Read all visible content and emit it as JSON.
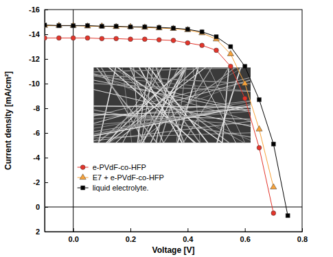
{
  "chart_data": {
    "type": "line",
    "x_label": "Voltage [V]",
    "y_label": "Current density [mA/cm²]",
    "x": [
      -0.1,
      -0.05,
      0,
      0.05,
      0.1,
      0.15,
      0.2,
      0.25,
      0.3,
      0.35,
      0.4,
      0.45,
      0.5,
      0.55,
      0.6,
      0.65,
      0.7,
      0.75
    ],
    "series": [
      {
        "name": "e-PVdF-co-HFP",
        "color": "#e3342a",
        "marker": "circle",
        "values": [
          -13.7,
          -13.7,
          -13.7,
          -13.7,
          -13.65,
          -13.65,
          -13.6,
          -13.6,
          -13.55,
          -13.5,
          -13.3,
          -13.1,
          -12.7,
          -11.4,
          -8.8,
          -4.8,
          0.5,
          null
        ]
      },
      {
        "name": "E7 + e-PVdF-co-HFP",
        "color": "#f7a23a",
        "marker": "triangle",
        "values": [
          -14.7,
          -14.7,
          -14.7,
          -14.65,
          -14.65,
          -14.6,
          -14.6,
          -14.55,
          -14.5,
          -14.45,
          -14.35,
          -14.1,
          -13.6,
          -12.4,
          -10.0,
          -6.3,
          -1.6,
          null
        ]
      },
      {
        "name": "liquid electrolyte.",
        "color": "#000000",
        "marker": "square",
        "values": [
          -14.75,
          -14.7,
          -14.7,
          -14.7,
          -14.65,
          -14.65,
          -14.6,
          -14.6,
          -14.55,
          -14.5,
          -14.4,
          -14.2,
          -13.8,
          -13.0,
          -11.4,
          -8.7,
          -5.1,
          0.7
        ]
      }
    ],
    "xlim": [
      -0.1,
      0.8
    ],
    "ylim": [
      -16,
      2
    ],
    "xticks": [
      {
        "value": 0,
        "label": "0.0"
      },
      0.2,
      0.4,
      0.6,
      0.8
    ],
    "yticks": [
      -16,
      -14,
      -12,
      -10,
      -8,
      -6,
      -4,
      -2,
      0,
      2
    ],
    "legend": "lower left",
    "grid": false
  }
}
